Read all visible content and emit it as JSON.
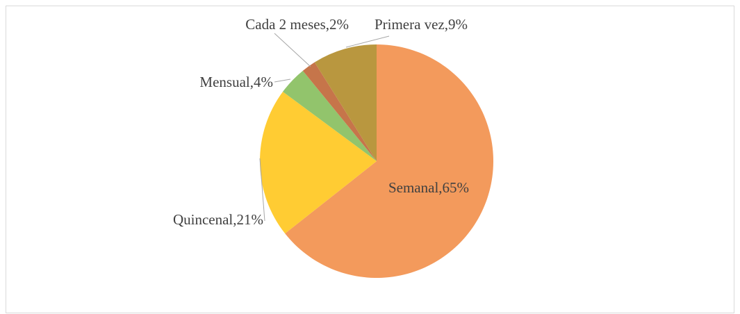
{
  "chart_data": {
    "type": "pie",
    "labels": [
      "Semanal,65%",
      "Quincenal,21%",
      "Mensual,4%",
      "Cada 2 meses,2%",
      "Primera vez,9%"
    ],
    "values": [
      65,
      21,
      4,
      2,
      9
    ],
    "colors": [
      "#f39a5c",
      "#ffcc33",
      "#92c46c",
      "#c6754a",
      "#b9973f"
    ]
  }
}
